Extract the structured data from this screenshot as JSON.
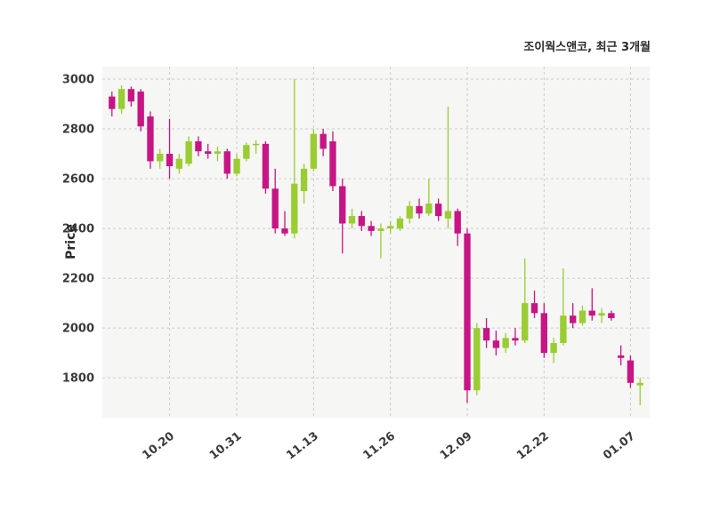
{
  "chart_data": {
    "type": "candlestick",
    "title": "조이웍스앤코, 최근 3개월",
    "ylabel": "Price",
    "ylim": [
      1640,
      3050
    ],
    "yticks": [
      1800,
      2000,
      2200,
      2400,
      2600,
      2800,
      3000
    ],
    "xticks": [
      {
        "index": 6,
        "label": "10.20"
      },
      {
        "index": 13,
        "label": "10.31"
      },
      {
        "index": 21,
        "label": "11.13"
      },
      {
        "index": 29,
        "label": "11.26"
      },
      {
        "index": 37,
        "label": "12.09"
      },
      {
        "index": 45,
        "label": "12.22"
      },
      {
        "index": 54,
        "label": "01.07"
      }
    ],
    "grid": "dashed",
    "legend": "none",
    "candles_format": "open,high,low,close",
    "colors": {
      "up": "#9ACD32",
      "down": "#C71585",
      "grid": "#cccccc",
      "plot_bg": "#f6f6f4",
      "text": "#3a3a3a",
      "title": "#2b2b2b"
    },
    "candles": [
      [
        2930,
        2950,
        2850,
        2880
      ],
      [
        2880,
        2975,
        2860,
        2960
      ],
      [
        2960,
        2970,
        2890,
        2910
      ],
      [
        2950,
        2960,
        2790,
        2810
      ],
      [
        2850,
        2870,
        2640,
        2670
      ],
      [
        2670,
        2720,
        2640,
        2700
      ],
      [
        2700,
        2840,
        2600,
        2650
      ],
      [
        2640,
        2700,
        2620,
        2680
      ],
      [
        2660,
        2770,
        2650,
        2750
      ],
      [
        2750,
        2770,
        2690,
        2710
      ],
      [
        2710,
        2740,
        2680,
        2700
      ],
      [
        2700,
        2730,
        2670,
        2710
      ],
      [
        2710,
        2720,
        2600,
        2620
      ],
      [
        2620,
        2700,
        2610,
        2680
      ],
      [
        2680,
        2745,
        2670,
        2735
      ],
      [
        2735,
        2755,
        2700,
        2740
      ],
      [
        2740,
        2750,
        2540,
        2560
      ],
      [
        2560,
        2640,
        2380,
        2400
      ],
      [
        2400,
        2470,
        2370,
        2380
      ],
      [
        2380,
        3000,
        2360,
        2580
      ],
      [
        2550,
        2660,
        2500,
        2640
      ],
      [
        2640,
        2800,
        2630,
        2780
      ],
      [
        2780,
        2800,
        2690,
        2720
      ],
      [
        2750,
        2790,
        2550,
        2570
      ],
      [
        2570,
        2600,
        2300,
        2420
      ],
      [
        2420,
        2480,
        2400,
        2450
      ],
      [
        2450,
        2470,
        2390,
        2410
      ],
      [
        2410,
        2430,
        2370,
        2390
      ],
      [
        2390,
        2420,
        2280,
        2400
      ],
      [
        2400,
        2430,
        2380,
        2410
      ],
      [
        2400,
        2450,
        2390,
        2440
      ],
      [
        2440,
        2510,
        2420,
        2490
      ],
      [
        2490,
        2520,
        2440,
        2460
      ],
      [
        2460,
        2600,
        2450,
        2500
      ],
      [
        2500,
        2520,
        2430,
        2450
      ],
      [
        2440,
        2890,
        2400,
        2470
      ],
      [
        2470,
        2480,
        2330,
        2380
      ],
      [
        2380,
        2400,
        1700,
        1750
      ],
      [
        1750,
        2020,
        1730,
        2000
      ],
      [
        2000,
        2040,
        1920,
        1950
      ],
      [
        1950,
        1990,
        1890,
        1920
      ],
      [
        1920,
        1980,
        1900,
        1960
      ],
      [
        1960,
        2000,
        1930,
        1950
      ],
      [
        1950,
        2280,
        1940,
        2100
      ],
      [
        2100,
        2150,
        2040,
        2060
      ],
      [
        2060,
        2100,
        1880,
        1900
      ],
      [
        1900,
        1960,
        1860,
        1940
      ],
      [
        1940,
        2240,
        1930,
        2050
      ],
      [
        2050,
        2100,
        2000,
        2020
      ],
      [
        2020,
        2090,
        2010,
        2070
      ],
      [
        2070,
        2160,
        2030,
        2050
      ],
      [
        2050,
        2080,
        2020,
        2060
      ],
      [
        2060,
        2070,
        2030,
        2040
      ],
      [
        1890,
        1930,
        1850,
        1880
      ],
      [
        1870,
        1890,
        1760,
        1780
      ],
      [
        1770,
        1800,
        1690,
        1780
      ]
    ]
  }
}
